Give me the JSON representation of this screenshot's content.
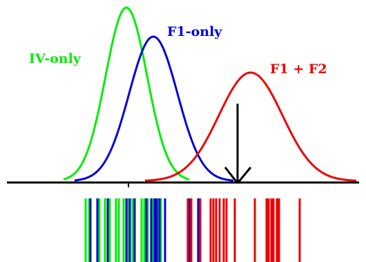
{
  "labels": {
    "iv_only": "IV-only",
    "f1_only": "F1-only",
    "f1_f2": "F1 + F2"
  },
  "colors": {
    "iv_only": "#00ee00",
    "f1_only": "#0000dd",
    "f1_f2": "#ee0000",
    "axis": "#000000"
  },
  "ticks": {
    "iv_only": [
      124,
      129,
      144,
      152,
      159,
      168,
      172,
      179,
      185,
      192,
      205,
      209,
      214,
      221,
      225,
      229,
      233
    ],
    "f1_only": [
      131,
      141,
      156,
      183,
      188,
      195,
      212,
      219,
      224,
      227,
      231,
      239,
      274,
      287
    ],
    "f1_f2": [
      272,
      277,
      290,
      305,
      309,
      313,
      318,
      324,
      328,
      340,
      369,
      386,
      389,
      393,
      396,
      401,
      404,
      434
    ]
  }
}
